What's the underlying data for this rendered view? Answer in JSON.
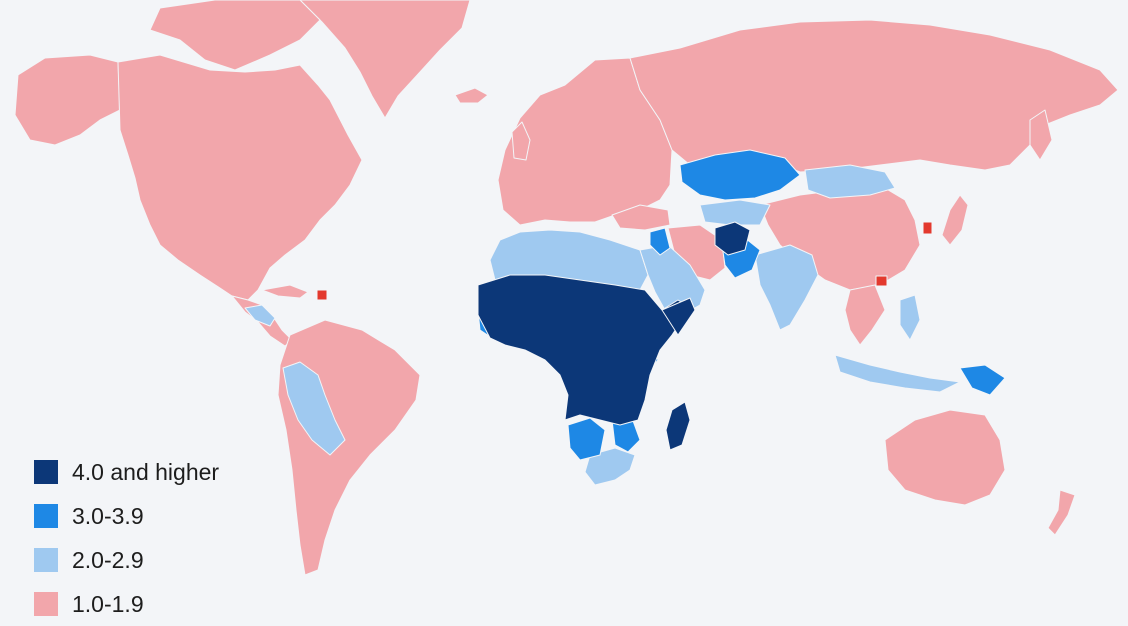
{
  "colors": {
    "background": "#f3f5f8",
    "border": "#f3f5f8",
    "tier_4_plus": "#0c3778",
    "tier_3": "#1e88e5",
    "tier_2": "#9fc9f0",
    "tier_1": "#f2a6ab",
    "highlight": "#e3392e"
  },
  "legend": {
    "items": [
      {
        "label": "4.0 and higher",
        "color": "#0c3778"
      },
      {
        "label": "3.0-3.9",
        "color": "#1e88e5"
      },
      {
        "label": "2.0-2.9",
        "color": "#9fc9f0"
      },
      {
        "label": "1.0-1.9",
        "color": "#f2a6ab"
      }
    ]
  }
}
